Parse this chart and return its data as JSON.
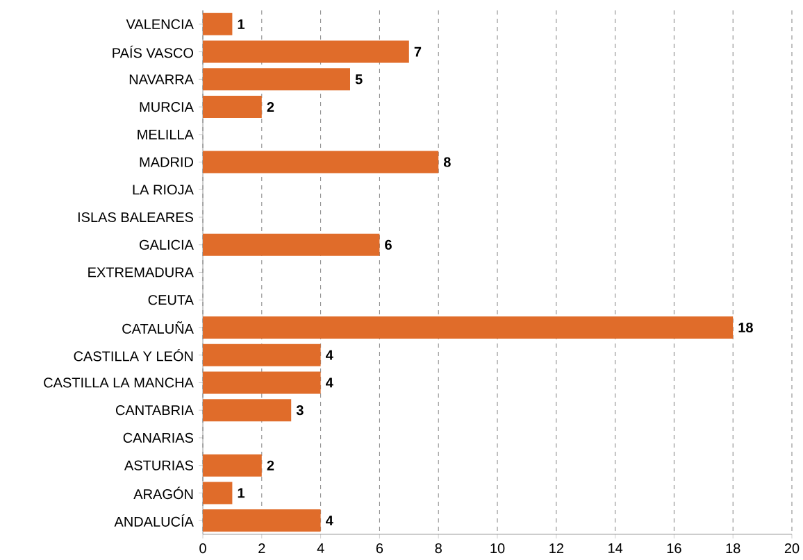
{
  "chart_data": {
    "type": "bar",
    "orientation": "horizontal",
    "categories": [
      "VALENCIA",
      "PAÍS VASCO",
      "NAVARRA",
      "MURCIA",
      "MELILLA",
      "MADRID",
      "LA RIOJA",
      "ISLAS BALEARES",
      "GALICIA",
      "EXTREMADURA",
      "CEUTA",
      "CATALUÑA",
      "CASTILLA Y LEÓN",
      "CASTILLA LA MANCHA",
      "CANTABRIA",
      "CANARIAS",
      "ASTURIAS",
      "ARAGÓN",
      "ANDALUCÍA"
    ],
    "values": [
      1,
      7,
      5,
      2,
      0,
      8,
      0,
      0,
      6,
      0,
      0,
      18,
      4,
      4,
      3,
      0,
      2,
      1,
      4
    ],
    "value_labels": [
      "1",
      "7",
      "5",
      "2",
      null,
      "8",
      null,
      null,
      "6",
      null,
      null,
      "18",
      "4",
      "4",
      "3",
      null,
      "2",
      "1",
      "4"
    ],
    "color": "#e06c2a",
    "xlim": [
      0,
      20
    ],
    "xticks": [
      0,
      2,
      4,
      6,
      8,
      10,
      12,
      14,
      16,
      18,
      20
    ],
    "grid": "x"
  }
}
